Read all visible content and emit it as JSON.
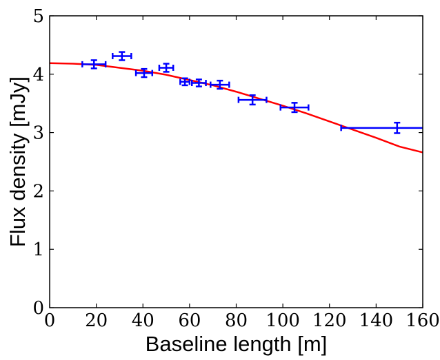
{
  "chart_data": {
    "type": "scatter",
    "xlabel": "Baseline length [m]",
    "ylabel": "Flux density [mJy]",
    "xlim": [
      0,
      160
    ],
    "ylim": [
      0,
      5
    ],
    "xticks": [
      "0",
      "20",
      "40",
      "60",
      "80",
      "100",
      "120",
      "140",
      "160"
    ],
    "yticks": [
      "0",
      "1",
      "2",
      "3",
      "4",
      "5"
    ],
    "grid": false,
    "colors": {
      "points": "#0000ff",
      "fit": "#ff0000",
      "axes": "#000000"
    },
    "series": [
      {
        "kind": "errorbar",
        "points": [
          {
            "x": 19,
            "y": 4.17,
            "xerr": [
              14,
              24
            ],
            "yerr": [
              4.1,
              4.24
            ]
          },
          {
            "x": 31,
            "y": 4.31,
            "xerr": [
              27,
              35
            ],
            "yerr": [
              4.24,
              4.38
            ]
          },
          {
            "x": 40.5,
            "y": 4.02,
            "xerr": [
              37,
              44
            ],
            "yerr": [
              3.95,
              4.09
            ]
          },
          {
            "x": 50,
            "y": 4.11,
            "xerr": [
              47,
              53
            ],
            "yerr": [
              4.04,
              4.18
            ]
          },
          {
            "x": 58,
            "y": 3.87,
            "xerr": [
              56,
              60
            ],
            "yerr": [
              3.81,
              3.93
            ]
          },
          {
            "x": 64,
            "y": 3.85,
            "xerr": [
              61,
              67
            ],
            "yerr": [
              3.79,
              3.91
            ]
          },
          {
            "x": 73,
            "y": 3.82,
            "xerr": [
              69,
              77
            ],
            "yerr": [
              3.75,
              3.89
            ]
          },
          {
            "x": 87,
            "y": 3.56,
            "xerr": [
              81,
              93
            ],
            "yerr": [
              3.48,
              3.64
            ]
          },
          {
            "x": 105,
            "y": 3.43,
            "xerr": [
              99,
              111
            ],
            "yerr": [
              3.35,
              3.51
            ]
          },
          {
            "x": 149,
            "y": 3.08,
            "xerr": [
              125,
              160
            ],
            "yerr": [
              2.99,
              3.17
            ]
          }
        ]
      },
      {
        "kind": "curve",
        "x": [
          0,
          10,
          20,
          30,
          40,
          50,
          60,
          70,
          80,
          90,
          100,
          110,
          120,
          130,
          140,
          150,
          160
        ],
        "y": [
          4.19,
          4.18,
          4.16,
          4.11,
          4.06,
          3.99,
          3.9,
          3.81,
          3.7,
          3.58,
          3.46,
          3.33,
          3.19,
          3.05,
          2.91,
          2.76,
          2.66
        ]
      }
    ]
  }
}
